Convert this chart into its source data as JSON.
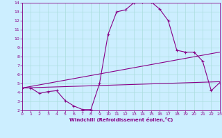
{
  "xlabel": "Windchill (Refroidissement éolien,°C)",
  "xlim": [
    0,
    23
  ],
  "ylim": [
    2,
    14
  ],
  "xticks": [
    0,
    1,
    2,
    3,
    4,
    5,
    6,
    7,
    8,
    9,
    10,
    11,
    12,
    13,
    14,
    15,
    16,
    17,
    18,
    19,
    20,
    21,
    22,
    23
  ],
  "yticks": [
    2,
    3,
    4,
    5,
    6,
    7,
    8,
    9,
    10,
    11,
    12,
    13,
    14
  ],
  "bg_color": "#cceeff",
  "line_color": "#880088",
  "grid_color": "#aadddd",
  "curve1_x": [
    0,
    1,
    2,
    3,
    4,
    5,
    6,
    7,
    8,
    9,
    10,
    11,
    12,
    13,
    14,
    15,
    16,
    17,
    18,
    19,
    20,
    21,
    22,
    23
  ],
  "curve1_y": [
    4.5,
    4.5,
    3.9,
    4.1,
    4.2,
    3.1,
    2.5,
    2.1,
    2.1,
    5.0,
    10.5,
    13.0,
    13.2,
    14.0,
    14.1,
    14.1,
    13.3,
    12.0,
    8.7,
    8.5,
    8.5,
    7.5,
    4.2,
    5.1
  ],
  "line1_x": [
    0,
    23
  ],
  "line1_y": [
    4.5,
    8.5
  ],
  "line2_x": [
    0,
    23
  ],
  "line2_y": [
    4.5,
    5.2
  ]
}
